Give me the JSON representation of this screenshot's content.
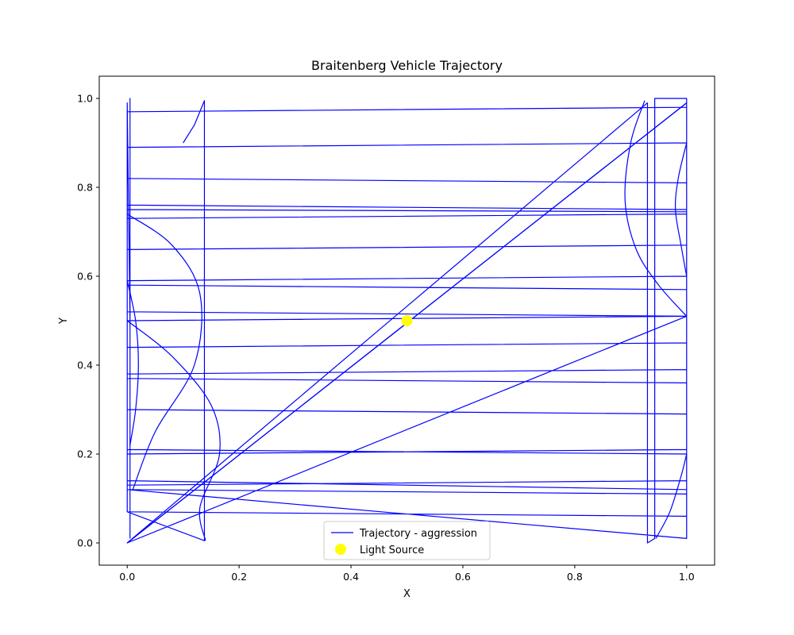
{
  "chart_data": {
    "type": "line",
    "title": "Braitenberg Vehicle Trajectory",
    "xlabel": "X",
    "ylabel": "Y",
    "xlim": [
      -0.05,
      1.05
    ],
    "ylim": [
      -0.05,
      1.05
    ],
    "xticks": [
      "0.0",
      "0.2",
      "0.4",
      "0.6",
      "0.8",
      "1.0"
    ],
    "yticks": [
      "0.0",
      "0.2",
      "0.4",
      "0.6",
      "0.8",
      "1.0"
    ],
    "grid": false,
    "legend_placement": "lower center",
    "colors": {
      "trajectory": "#0000ff",
      "light_source": "#ffff00"
    },
    "series": [
      {
        "name": "Trajectory - aggression",
        "kind": "line",
        "x": [
          0.1,
          0.12,
          0.138,
          0.138,
          0.138,
          0.0,
          0.0,
          0.0,
          1.0,
          1.0,
          1.0,
          0.0,
          0.0,
          0.0,
          1.0,
          1.0,
          1.0,
          0.0,
          0.0,
          0.0,
          1.0,
          1.0,
          1.0,
          0.0,
          0.0,
          0.0,
          1.0,
          1.0,
          1.0,
          0.0,
          0.0,
          0.0,
          1.0,
          1.0,
          1.0,
          0.0,
          0.0,
          0.0,
          1.0,
          1.0,
          1.0,
          0.0,
          0.0,
          0.0,
          1.0,
          1.0,
          1.0,
          0.0,
          0.0,
          0.0,
          1.0,
          1.0,
          1.0,
          0.0,
          0.0,
          0.0,
          1.0,
          1.0,
          1.0,
          0.0,
          0.0,
          0.0,
          1.0,
          1.0,
          1.0,
          0.0,
          0.0,
          0.0,
          1.0,
          1.0,
          1.0,
          0.0,
          0.0,
          0.0,
          1.0,
          1.0,
          1.0,
          0.0,
          0.0,
          0.0,
          1.0,
          1.0,
          1.0,
          0.0,
          0.0,
          0.0,
          0.93,
          0.93,
          0.93,
          0.943,
          0.943,
          0.943,
          1.0,
          1.0,
          1.0,
          0.0,
          0.0,
          0.0,
          0.0,
          0.005,
          0.005,
          0.005,
          0.005
        ],
        "y": [
          0.9,
          0.94,
          0.995,
          0.5,
          0.005,
          0.07,
          0.97,
          0.97,
          0.98,
          0.06,
          0.06,
          0.07,
          0.89,
          0.89,
          0.9,
          0.11,
          0.11,
          0.12,
          0.82,
          0.82,
          0.81,
          0.12,
          0.12,
          0.14,
          0.76,
          0.76,
          0.75,
          0.14,
          0.14,
          0.13,
          0.75,
          0.75,
          0.745,
          0.2,
          0.2,
          0.21,
          0.73,
          0.73,
          0.74,
          0.21,
          0.21,
          0.2,
          0.66,
          0.66,
          0.67,
          0.29,
          0.29,
          0.3,
          0.59,
          0.59,
          0.6,
          0.36,
          0.36,
          0.37,
          0.58,
          0.58,
          0.57,
          0.39,
          0.39,
          0.38,
          0.52,
          0.52,
          0.51,
          0.45,
          0.45,
          0.44,
          0.5,
          0.5,
          0.51,
          0.51,
          0.51,
          0.5,
          0.5,
          0.5,
          0.51,
          0.51,
          0.51,
          0.0,
          0.0,
          0.0,
          0.99,
          0.99,
          0.99,
          0.0,
          0.0,
          0.0,
          0.99,
          0.5,
          0.0,
          0.01,
          0.5,
          1.0,
          1.0,
          0.5,
          0.01,
          0.12,
          0.5,
          0.99,
          0.99,
          0.5,
          1.0,
          0.5,
          0.01
        ]
      },
      {
        "name": "Light Source",
        "kind": "scatter",
        "points": [
          [
            0.5,
            0.5
          ]
        ]
      }
    ],
    "curves": [
      {
        "comment": "bow curve near left wall",
        "x": [
          0.0,
          0.08,
          0.13,
          0.12,
          0.05,
          0.01
        ],
        "y": [
          0.74,
          0.67,
          0.56,
          0.4,
          0.25,
          0.12
        ]
      },
      {
        "comment": "bow curve near left wall lower",
        "x": [
          0.0,
          0.08,
          0.15,
          0.165,
          0.13,
          0.14
        ],
        "y": [
          0.5,
          0.42,
          0.31,
          0.2,
          0.08,
          0.005
        ]
      },
      {
        "comment": "small curve near left wall",
        "x": [
          0.0,
          0.015,
          0.02,
          0.015,
          0.005
        ],
        "y": [
          0.59,
          0.5,
          0.4,
          0.3,
          0.22
        ]
      },
      {
        "comment": "bow curve near right wall",
        "x": [
          0.925,
          0.9,
          0.89,
          0.91,
          0.95,
          1.0
        ],
        "y": [
          0.995,
          0.9,
          0.77,
          0.66,
          0.58,
          0.51
        ]
      },
      {
        "comment": "bow curve near right wall upper",
        "x": [
          1.0,
          0.985,
          0.98,
          0.99,
          1.0
        ],
        "y": [
          0.9,
          0.82,
          0.75,
          0.67,
          0.6
        ]
      },
      {
        "comment": "curve near right wall lower",
        "x": [
          0.945,
          0.97,
          0.99,
          1.0
        ],
        "y": [
          0.01,
          0.07,
          0.15,
          0.2
        ]
      }
    ],
    "diagonal": {
      "x": [
        0.0,
        1.0
      ],
      "y": [
        0.0,
        0.99
      ]
    }
  }
}
